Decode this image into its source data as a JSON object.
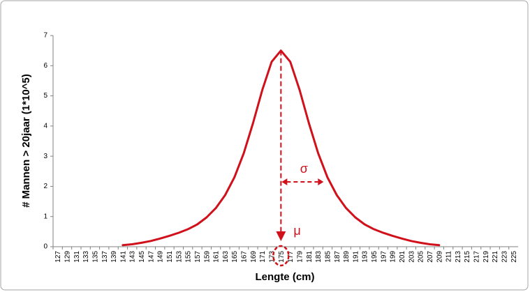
{
  "chart_data": {
    "type": "line",
    "y_label": "# Mannen > 20jaar (1*10^5)",
    "x_label": "Lengte (cm)",
    "annotations": [
      "σ",
      "μ"
    ],
    "categories": [
      127,
      129,
      131,
      133,
      135,
      137,
      139,
      141,
      143,
      145,
      147,
      149,
      151,
      153,
      155,
      157,
      159,
      161,
      163,
      165,
      167,
      169,
      171,
      173,
      175,
      177,
      179,
      181,
      183,
      185,
      187,
      189,
      191,
      193,
      195,
      197,
      199,
      201,
      203,
      205,
      207,
      209,
      211,
      213,
      215,
      217,
      219,
      221,
      223,
      225
    ],
    "series": [
      {
        "color": "#d0101a",
        "values": [
          null,
          null,
          null,
          null,
          null,
          null,
          null,
          0.05,
          0.08,
          0.13,
          0.19,
          0.27,
          0.36,
          0.46,
          0.58,
          0.74,
          0.97,
          1.28,
          1.71,
          2.3,
          3.1,
          4.1,
          5.2,
          6.13,
          6.5,
          6.13,
          5.2,
          4.1,
          3.1,
          2.3,
          1.71,
          1.28,
          0.97,
          0.74,
          0.58,
          0.46,
          0.36,
          0.27,
          0.19,
          0.13,
          0.08,
          0.05,
          null,
          null,
          null,
          null,
          null,
          null,
          null,
          null
        ]
      }
    ],
    "ylim": [
      0,
      7
    ],
    "yticks": [
      0,
      1,
      2,
      3,
      4,
      5,
      6,
      7
    ],
    "grid": false
  }
}
